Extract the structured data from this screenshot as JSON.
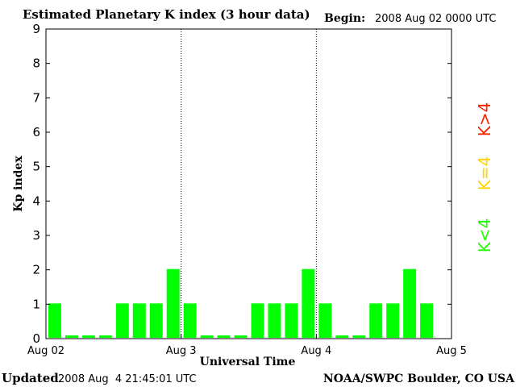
{
  "chart_data": {
    "type": "bar",
    "title": "Estimated Planetary K index (3 hour data)",
    "begin_label": "Begin:",
    "begin_value": "2008 Aug 02 0000 UTC",
    "xlabel": "Universal Time",
    "ylabel": "Kp index",
    "ylim": [
      0,
      9
    ],
    "y_ticks": [
      "0",
      "1",
      "2",
      "3",
      "4",
      "5",
      "6",
      "7",
      "8",
      "9"
    ],
    "x_ticks": [
      "Aug 02",
      "Aug 3",
      "Aug 4",
      "Aug 5"
    ],
    "grid": false,
    "day_separators": true,
    "bars_per_day": 8,
    "values": [
      1,
      0,
      0,
      0,
      1,
      1,
      1,
      2,
      1,
      0,
      0,
      0,
      1,
      1,
      1,
      2,
      1,
      0,
      0,
      1,
      1,
      2,
      1
    ],
    "legend": [
      {
        "label": "K>4",
        "color": "#ff2200"
      },
      {
        "label": "K=4",
        "color": "#ffd400"
      },
      {
        "label": "K<4",
        "color": "#22ff00"
      }
    ]
  },
  "footer": {
    "updated_label": "Updated",
    "updated_value": "2008 Aug  4 21:45:01 UTC",
    "source": "NOAA/SWPC Boulder, CO USA"
  },
  "colors": {
    "bar": "#00ff00",
    "axis": "#000000",
    "separator": "#000000"
  }
}
